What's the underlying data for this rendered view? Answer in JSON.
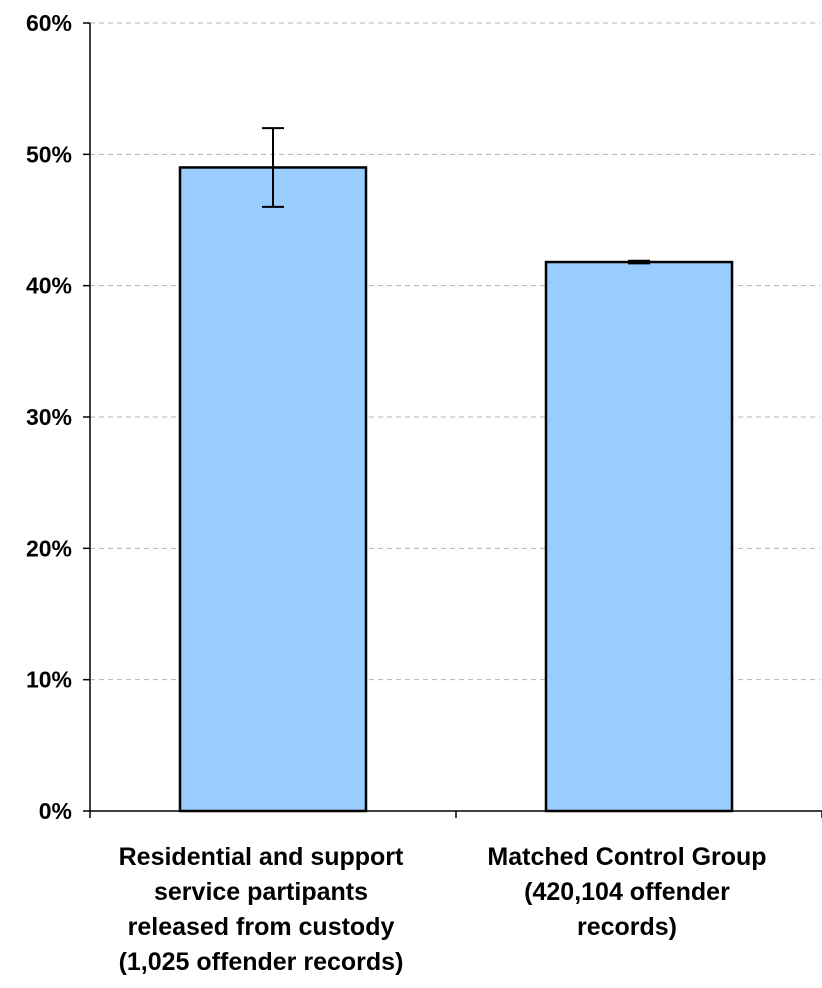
{
  "chart_data": {
    "type": "bar",
    "categories": [
      [
        "Residential and support",
        "service partipants",
        "released from custody",
        "(1,025 offender records)"
      ],
      [
        "Matched Control Group",
        "(420,104 offender",
        "records)"
      ]
    ],
    "values": [
      49,
      41.8
    ],
    "error_bars": [
      {
        "low": 46,
        "high": 52
      },
      {
        "low": 41.7,
        "high": 41.9
      }
    ],
    "ylim": [
      0,
      60
    ],
    "yticks": [
      0,
      10,
      20,
      30,
      40,
      50,
      60
    ],
    "ytick_labels": [
      "0%",
      "10%",
      "20%",
      "30%",
      "40%",
      "50%",
      "60%"
    ],
    "grid": true,
    "bar_color": "#99CCFF",
    "title": "",
    "xlabel": "",
    "ylabel": ""
  }
}
